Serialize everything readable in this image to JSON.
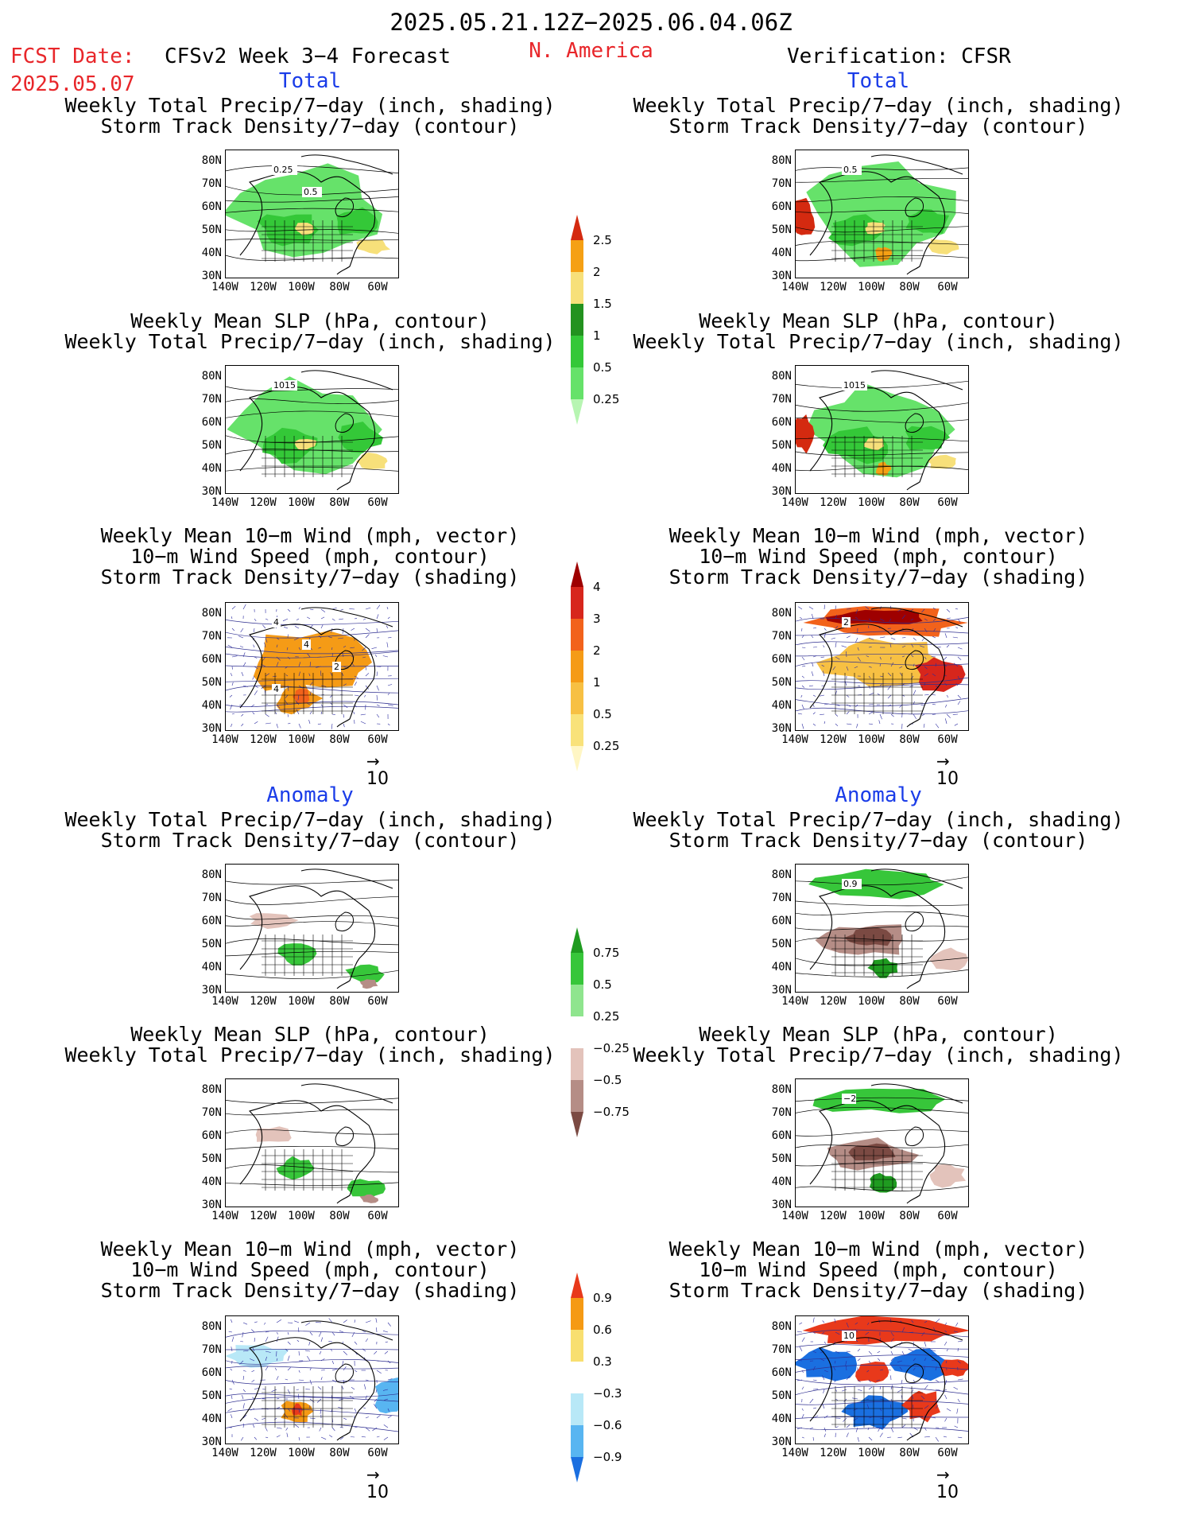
{
  "header": {
    "date_range": "2025.05.21.12Z−2025.06.04.06Z",
    "fcst_label": "FCST Date:",
    "fcst_date": "2025.05.07",
    "model_title": "CFSv2 Week 3−4 Forecast",
    "region": "N. America",
    "verification": "Verification: CFSR"
  },
  "sections": {
    "total_left": "Total",
    "total_right": "Total",
    "anomaly_left": "Anomaly",
    "anomaly_right": "Anomaly"
  },
  "titles": {
    "precip_storm_1": "Weekly Total Precip/7−day (inch, shading)",
    "precip_storm_2": "Storm Track Density/7−day (contour)",
    "slp_1": "Weekly Mean SLP (hPa, contour)",
    "slp_2": "Weekly Total Precip/7−day (inch, shading)",
    "wind_1": "Weekly Mean 10−m Wind (mph, vector)",
    "wind_2": "10−m Wind Speed (mph, contour)",
    "wind_3": "Storm Track Density/7−day (shading)"
  },
  "axes": {
    "lat_labels": [
      "80N",
      "70N",
      "60N",
      "50N",
      "40N",
      "30N"
    ],
    "lon_labels": [
      "140W",
      "120W",
      "100W",
      "80W",
      "60W"
    ]
  },
  "vector_reference": "10",
  "contour_labels": {
    "total_fcst_precip": [
      "0.25",
      "0.5"
    ],
    "total_verif_precip": [
      "0.5"
    ],
    "total_fcst_slp": [
      "1015"
    ],
    "total_verif_slp": [
      "1015"
    ],
    "total_fcst_wind": [
      "4",
      "4",
      "2",
      "4"
    ],
    "total_verif_wind": [
      "2"
    ],
    "anom_verif_precip": [
      "0.9"
    ],
    "anom_verif_slp": [
      "−2"
    ],
    "anom_verif_wind": [
      "10"
    ]
  },
  "colorbars": {
    "precip_total": {
      "labels": [
        "2.5",
        "2",
        "1.5",
        "1",
        "0.5",
        "0.25"
      ],
      "colors": [
        "#d42a10",
        "#f5a014",
        "#f7e07a",
        "#23921f",
        "#34c838",
        "#66e26a",
        "#b7f5b2"
      ]
    },
    "storm_total": {
      "labels": [
        "4",
        "3",
        "2",
        "1",
        "0.5",
        "0.25"
      ],
      "colors": [
        "#9e0000",
        "#d7261c",
        "#f2621b",
        "#f59b16",
        "#f7c043",
        "#f9e27a",
        "#fff6c4"
      ]
    },
    "precip_anom": {
      "labels": [
        "0.75",
        "0.5",
        "0.25",
        "−0.25",
        "−0.5",
        "−0.75"
      ],
      "colors": [
        "#1f9b20",
        "#37c63a",
        "#8fe58e",
        "#ffffff",
        "#e3c3bb",
        "#b58d86",
        "#7b4a43"
      ]
    },
    "storm_anom": {
      "labels": [
        "0.9",
        "0.6",
        "0.3",
        "−0.3",
        "−0.6",
        "−0.9"
      ],
      "colors": [
        "#e8391b",
        "#f59a14",
        "#f8df70",
        "#ffffff",
        "#b8e8f7",
        "#58b5f1",
        "#1a6fe0"
      ]
    }
  }
}
